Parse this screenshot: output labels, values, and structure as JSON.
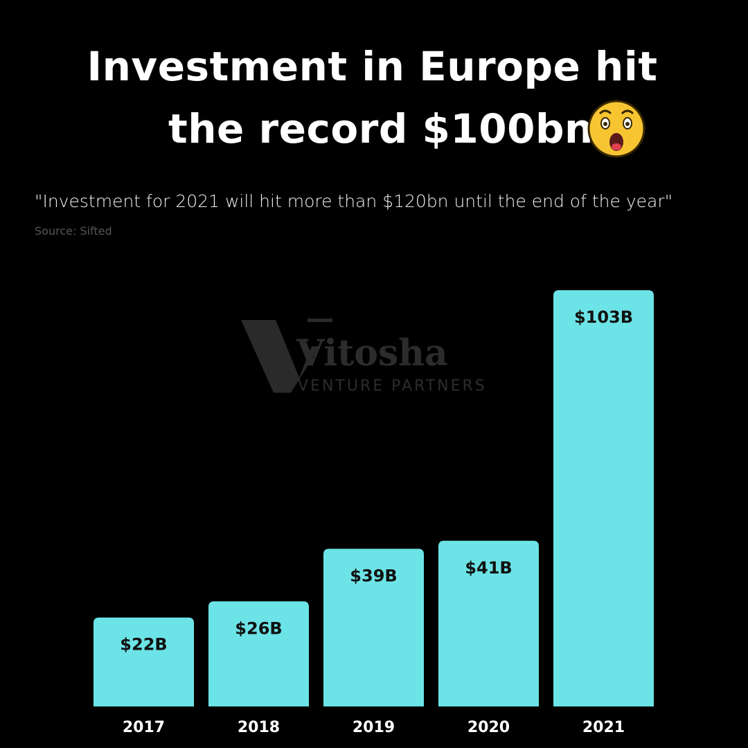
{
  "chart_data": {
    "type": "bar",
    "title": [
      "Investment in Europe hit",
      "the record $100bn"
    ],
    "subtitle": "\"Investment for 2021 will hit more than $120bn until the end of the year\"",
    "source": "Source: Sifted",
    "watermark": {
      "name": "Vitosha",
      "tagline": "VENTURE PARTNERS"
    },
    "categories": [
      "2017",
      "2018",
      "2019",
      "2020",
      "2021"
    ],
    "values": [
      22,
      26,
      39,
      41,
      103
    ],
    "value_labels": [
      "$22B",
      "$26B",
      "$39B",
      "$41B",
      "$103B"
    ],
    "color": "#6ce3e6"
  }
}
